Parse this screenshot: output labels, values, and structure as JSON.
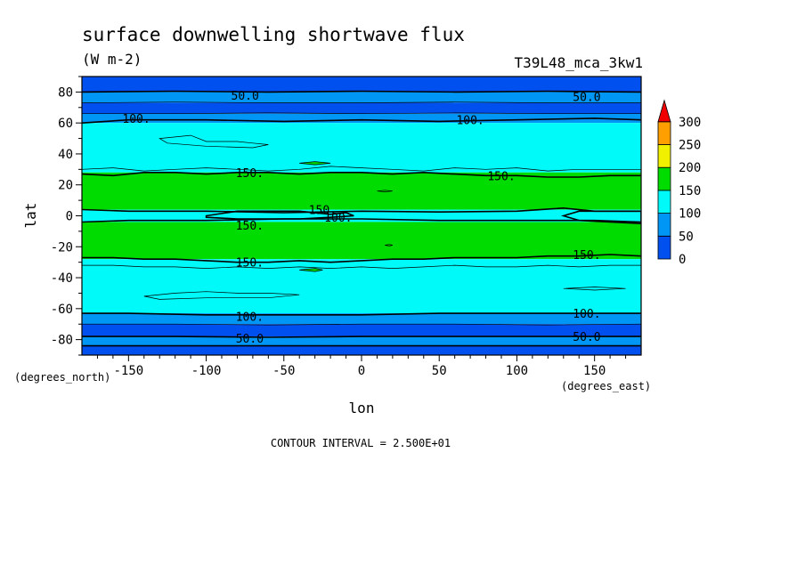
{
  "chart_data": {
    "type": "heatmap",
    "subtype": "filled-contour-map",
    "title": "surface downwelling shortwave flux",
    "units": "(W m-2)",
    "experiment": "T39L48_mca_3kw1",
    "xlabel": "lon",
    "ylabel": "lat",
    "x_unit_label": "(degrees_east)",
    "y_unit_label": "(degrees_north)",
    "xlim": [
      -180,
      180
    ],
    "ylim": [
      -90,
      90
    ],
    "x_ticks": [
      {
        "value": -150,
        "label": "-150"
      },
      {
        "value": -100,
        "label": "-100"
      },
      {
        "value": -50,
        "label": "-50"
      },
      {
        "value": 0,
        "label": "0"
      },
      {
        "value": 50,
        "label": "50"
      },
      {
        "value": 100,
        "label": "100"
      },
      {
        "value": 150,
        "label": "150"
      }
    ],
    "y_ticks": [
      {
        "value": 80,
        "label": "80"
      },
      {
        "value": 60,
        "label": "60"
      },
      {
        "value": 40,
        "label": "40"
      },
      {
        "value": 20,
        "label": "20"
      },
      {
        "value": 0,
        "label": "0"
      },
      {
        "value": -20,
        "label": "-20"
      },
      {
        "value": -40,
        "label": "-40"
      },
      {
        "value": -60,
        "label": "-60"
      },
      {
        "value": -80,
        "label": "-80"
      }
    ],
    "contour_interval_text": "CONTOUR INTERVAL = 2.500E+01",
    "colorbar": {
      "levels": [
        {
          "from": 0,
          "to": 50,
          "color": "#0050f0"
        },
        {
          "from": 50,
          "to": 100,
          "color": "#0096f5"
        },
        {
          "from": 100,
          "to": 150,
          "color": "#00fafa"
        },
        {
          "from": 150,
          "to": 200,
          "color": "#00dc00"
        },
        {
          "from": 200,
          "to": 250,
          "color": "#f0f000"
        },
        {
          "from": 250,
          "to": 300,
          "color": "#ffa000"
        },
        {
          "from": 300,
          "to": null,
          "color": "#f00000"
        }
      ],
      "tick_labels": [
        "0",
        "50",
        "100",
        "150",
        "200",
        "250",
        "300"
      ]
    },
    "latitude_bands": [
      {
        "lat_from": 90,
        "lat_to": 80,
        "color": "#0050f0"
      },
      {
        "lat_from": 80,
        "lat_to": 73,
        "color": "#0096f5"
      },
      {
        "lat_from": 73,
        "lat_to": 66,
        "color": "#0050f0"
      },
      {
        "lat_from": 66,
        "lat_to": 60,
        "color": "#0096f5"
      },
      {
        "lat_from": 60,
        "lat_to": 28,
        "color": "#00fafa"
      },
      {
        "lat_from": 28,
        "lat_to": 4,
        "color": "#00dc00"
      },
      {
        "lat_from": 4,
        "lat_to": -4,
        "color": "#00fafa"
      },
      {
        "lat_from": -4,
        "lat_to": -28,
        "color": "#00dc00"
      },
      {
        "lat_from": -28,
        "lat_to": -63,
        "color": "#00fafa"
      },
      {
        "lat_from": -63,
        "lat_to": -70,
        "color": "#0096f5"
      },
      {
        "lat_from": -70,
        "lat_to": -78,
        "color": "#0050f0"
      },
      {
        "lat_from": -78,
        "lat_to": -84,
        "color": "#0096f5"
      },
      {
        "lat_from": -84,
        "lat_to": -90,
        "color": "#0050f0"
      }
    ],
    "contour_labels": [
      {
        "lon": -75,
        "lat": 78,
        "text": "50.0"
      },
      {
        "lon": 145,
        "lat": 77,
        "text": "50.0"
      },
      {
        "lon": -145,
        "lat": 63,
        "text": "100."
      },
      {
        "lon": 70,
        "lat": 62,
        "text": "100."
      },
      {
        "lon": -72,
        "lat": 28,
        "text": "150."
      },
      {
        "lon": 90,
        "lat": 26,
        "text": "150."
      },
      {
        "lon": -25,
        "lat": 4,
        "text": "150."
      },
      {
        "lon": -15,
        "lat": -1,
        "text": "100."
      },
      {
        "lon": -72,
        "lat": -6,
        "text": "150."
      },
      {
        "lon": -72,
        "lat": -30,
        "text": "150."
      },
      {
        "lon": 145,
        "lat": -25,
        "text": "150."
      },
      {
        "lon": -72,
        "lat": -65,
        "text": "100."
      },
      {
        "lon": 145,
        "lat": -63,
        "text": "100."
      },
      {
        "lon": -72,
        "lat": -79,
        "text": "50.0"
      },
      {
        "lon": 145,
        "lat": -78,
        "text": "50.0"
      }
    ],
    "contours": [
      {
        "level": 50,
        "points": [
          [
            -180,
            80
          ],
          [
            -120,
            80.5
          ],
          [
            -60,
            80
          ],
          [
            0,
            80.5
          ],
          [
            60,
            80
          ],
          [
            120,
            80.5
          ],
          [
            180,
            80
          ]
        ]
      },
      {
        "level": 75,
        "points": [
          [
            -180,
            73
          ],
          [
            -120,
            73.5
          ],
          [
            -60,
            73
          ],
          [
            0,
            73
          ],
          [
            60,
            73.5
          ],
          [
            120,
            73
          ],
          [
            180,
            73
          ]
        ]
      },
      {
        "level": 75,
        "points": [
          [
            -180,
            66
          ],
          [
            -120,
            66
          ],
          [
            -60,
            66.5
          ],
          [
            0,
            66
          ],
          [
            60,
            66.5
          ],
          [
            120,
            66
          ],
          [
            180,
            66
          ]
        ]
      },
      {
        "level": 100,
        "points": [
          [
            -180,
            60
          ],
          [
            -150,
            62
          ],
          [
            -100,
            62
          ],
          [
            -50,
            61
          ],
          [
            0,
            62
          ],
          [
            50,
            61
          ],
          [
            100,
            62
          ],
          [
            150,
            63
          ],
          [
            180,
            62
          ]
        ]
      },
      {
        "level": 125,
        "points": [
          [
            -180,
            30
          ],
          [
            -160,
            31
          ],
          [
            -140,
            29
          ],
          [
            -120,
            30
          ],
          [
            -100,
            31
          ],
          [
            -80,
            30
          ],
          [
            -60,
            29
          ],
          [
            -40,
            30
          ],
          [
            -20,
            32
          ],
          [
            0,
            31
          ],
          [
            20,
            30
          ],
          [
            40,
            29
          ],
          [
            60,
            31
          ],
          [
            80,
            30
          ],
          [
            100,
            31
          ],
          [
            120,
            29
          ],
          [
            140,
            30
          ],
          [
            160,
            30
          ],
          [
            180,
            30
          ]
        ]
      },
      {
        "level": 150,
        "points": [
          [
            -180,
            27
          ],
          [
            -160,
            26
          ],
          [
            -140,
            28
          ],
          [
            -120,
            28
          ],
          [
            -100,
            27
          ],
          [
            -80,
            28
          ],
          [
            -60,
            28
          ],
          [
            -40,
            27
          ],
          [
            -20,
            28
          ],
          [
            0,
            28
          ],
          [
            20,
            27
          ],
          [
            40,
            28
          ],
          [
            60,
            27
          ],
          [
            80,
            26
          ],
          [
            100,
            26
          ],
          [
            120,
            25
          ],
          [
            140,
            25
          ],
          [
            160,
            26
          ],
          [
            180,
            26
          ]
        ]
      },
      {
        "level": 150,
        "points": [
          [
            -180,
            4
          ],
          [
            -150,
            3
          ],
          [
            -100,
            3
          ],
          [
            -50,
            2
          ],
          [
            0,
            3
          ],
          [
            50,
            2.5
          ],
          [
            100,
            3
          ],
          [
            130,
            5
          ],
          [
            150,
            3
          ],
          [
            180,
            3
          ]
        ]
      },
      {
        "level": 150,
        "points": [
          [
            -180,
            -4
          ],
          [
            -150,
            -3
          ],
          [
            -100,
            -3
          ],
          [
            -50,
            -2
          ],
          [
            0,
            -2
          ],
          [
            50,
            -3
          ],
          [
            100,
            -3
          ],
          [
            150,
            -3
          ],
          [
            180,
            -4
          ]
        ]
      },
      {
        "level": 150,
        "points": [
          [
            -180,
            -27
          ],
          [
            -160,
            -27
          ],
          [
            -140,
            -28
          ],
          [
            -120,
            -28
          ],
          [
            -100,
            -29
          ],
          [
            -80,
            -30
          ],
          [
            -60,
            -30
          ],
          [
            -40,
            -29
          ],
          [
            -20,
            -30
          ],
          [
            0,
            -29
          ],
          [
            20,
            -28
          ],
          [
            40,
            -28
          ],
          [
            60,
            -27
          ],
          [
            80,
            -27
          ],
          [
            100,
            -27
          ],
          [
            120,
            -26
          ],
          [
            140,
            -26
          ],
          [
            160,
            -25
          ],
          [
            180,
            -26
          ]
        ]
      },
      {
        "level": 125,
        "points": [
          [
            -180,
            -32
          ],
          [
            -160,
            -32
          ],
          [
            -140,
            -33
          ],
          [
            -120,
            -33
          ],
          [
            -100,
            -34
          ],
          [
            -80,
            -33
          ],
          [
            -60,
            -34
          ],
          [
            -40,
            -33
          ],
          [
            -20,
            -34
          ],
          [
            0,
            -33
          ],
          [
            20,
            -34
          ],
          [
            40,
            -33
          ],
          [
            60,
            -32
          ],
          [
            80,
            -33
          ],
          [
            100,
            -33
          ],
          [
            120,
            -32
          ],
          [
            140,
            -33
          ],
          [
            160,
            -32
          ],
          [
            180,
            -32
          ]
        ]
      },
      {
        "level": 100,
        "points": [
          [
            -180,
            -63
          ],
          [
            -150,
            -63
          ],
          [
            -100,
            -64
          ],
          [
            -50,
            -64
          ],
          [
            0,
            -64
          ],
          [
            50,
            -63
          ],
          [
            100,
            -63
          ],
          [
            150,
            -63
          ],
          [
            180,
            -63
          ]
        ]
      },
      {
        "level": 75,
        "points": [
          [
            -180,
            -70
          ],
          [
            -120,
            -70
          ],
          [
            -60,
            -70.5
          ],
          [
            0,
            -70
          ],
          [
            60,
            -70
          ],
          [
            120,
            -70.5
          ],
          [
            180,
            -70
          ]
        ]
      },
      {
        "level": 50,
        "points": [
          [
            -180,
            -78
          ],
          [
            -120,
            -78
          ],
          [
            -60,
            -78.5
          ],
          [
            0,
            -78
          ],
          [
            60,
            -78
          ],
          [
            120,
            -78
          ],
          [
            180,
            -78
          ]
        ]
      },
      {
        "level": 50,
        "points": [
          [
            -180,
            -84
          ],
          [
            -120,
            -84
          ],
          [
            -60,
            -84
          ],
          [
            0,
            -84
          ],
          [
            60,
            -84
          ],
          [
            120,
            -84
          ],
          [
            180,
            -84
          ]
        ]
      }
    ],
    "closed_contours": [
      {
        "level": 150,
        "points": [
          [
            -100,
            0
          ],
          [
            -80,
            3
          ],
          [
            -40,
            3
          ],
          [
            -20,
            1
          ],
          [
            -10,
            2
          ],
          [
            -5,
            0
          ],
          [
            -20,
            -1
          ],
          [
            -40,
            -2
          ],
          [
            -80,
            -2
          ],
          [
            -100,
            -1
          ]
        ]
      },
      {
        "level": 125,
        "points": [
          [
            -130,
            50
          ],
          [
            -110,
            52
          ],
          [
            -100,
            48
          ],
          [
            -80,
            48
          ],
          [
            -70,
            47
          ],
          [
            -60,
            46
          ],
          [
            -70,
            44
          ],
          [
            -100,
            45
          ],
          [
            -125,
            47
          ]
        ]
      },
      {
        "level": 125,
        "points": [
          [
            -140,
            -52
          ],
          [
            -120,
            -50
          ],
          [
            -100,
            -49
          ],
          [
            -80,
            -50
          ],
          [
            -60,
            -50
          ],
          [
            -40,
            -51
          ],
          [
            -60,
            -53
          ],
          [
            -100,
            -53
          ],
          [
            -130,
            -54
          ]
        ]
      },
      {
        "level": 125,
        "points": [
          [
            130,
            -47
          ],
          [
            150,
            -46
          ],
          [
            170,
            -47
          ],
          [
            150,
            -48
          ]
        ]
      },
      {
        "level": 150,
        "points": [
          [
            130,
            0
          ],
          [
            140,
            -3
          ],
          [
            160,
            -4
          ],
          [
            180,
            -5
          ],
          [
            180,
            3
          ],
          [
            160,
            3
          ],
          [
            140,
            3
          ]
        ]
      },
      {
        "level": 175,
        "points": [
          [
            -40,
            34
          ],
          [
            -30,
            33
          ],
          [
            -20,
            34
          ],
          [
            -30,
            35
          ]
        ]
      },
      {
        "level": 175,
        "points": [
          [
            10,
            16
          ],
          [
            15,
            15.5
          ],
          [
            20,
            16
          ],
          [
            15,
            16.5
          ]
        ]
      },
      {
        "level": 175,
        "points": [
          [
            -40,
            -35
          ],
          [
            -30,
            -34
          ],
          [
            -25,
            -35
          ],
          [
            -30,
            -36
          ]
        ]
      },
      {
        "level": 175,
        "points": [
          [
            15,
            -19
          ],
          [
            18,
            -18.5
          ],
          [
            20,
            -19
          ],
          [
            18,
            -19.5
          ]
        ]
      }
    ]
  }
}
